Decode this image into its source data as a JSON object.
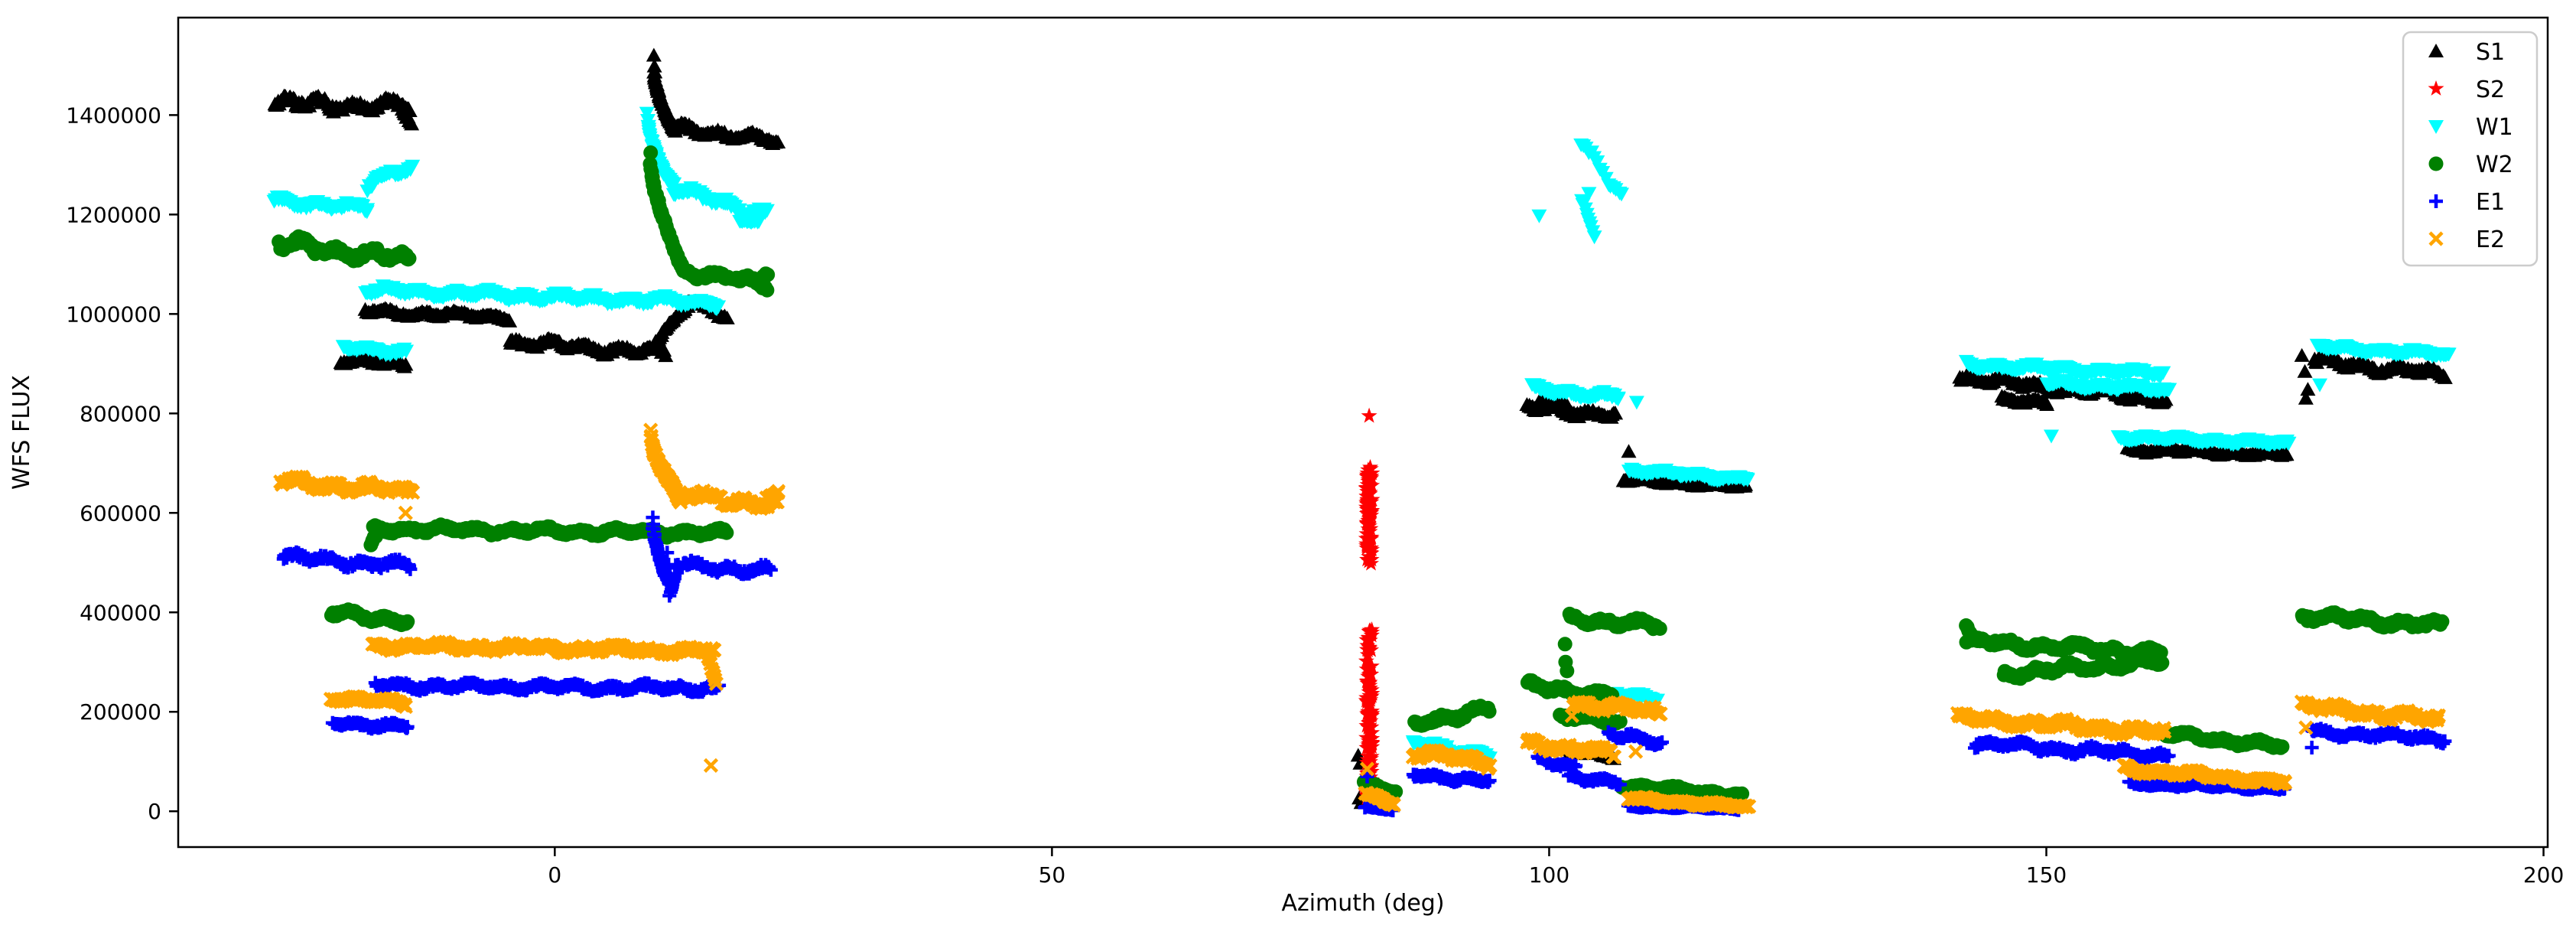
{
  "chart_data": {
    "type": "scatter",
    "title": "",
    "xlabel": "Azimuth (deg)",
    "ylabel": "WFS FLUX",
    "xlim": [
      -37.87,
      200.42
    ],
    "ylim": [
      -72000,
      1596000
    ],
    "xticks": [
      0,
      50,
      100,
      150,
      200
    ],
    "xtick_labels": [
      "0",
      "50",
      "100",
      "150",
      "200"
    ],
    "yticks": [
      0,
      200000,
      400000,
      600000,
      800000,
      1000000,
      1200000,
      1400000
    ],
    "ytick_labels": [
      "0",
      "200000",
      "400000",
      "600000",
      "800000",
      "1000000",
      "1200000",
      "1400000"
    ],
    "grid": false,
    "legend_position": "upper right",
    "background_color": "#ffffff",
    "axis_color": "#000000",
    "series": [
      {
        "name": "S1",
        "color": "#000000",
        "marker": "triangle_up",
        "segments": [
          {
            "a0": -28.2,
            "a1": -14.6,
            "f0": 1424000,
            "f1": 1416000,
            "amp": 13000
          },
          {
            "a0": -15.3,
            "a1": -14.4,
            "f0": 1408000,
            "f1": 1386000,
            "amp": 5000,
            "n": 10
          },
          {
            "a0": -21.5,
            "a1": -15.0,
            "f0": 906000,
            "f1": 898000,
            "amp": 6000
          },
          {
            "a0": -19.0,
            "a1": -4.5,
            "f0": 1006000,
            "f1": 993000,
            "amp": 6000
          },
          {
            "a0": -4.5,
            "a1": 11.1,
            "f0": 944000,
            "f1": 921000,
            "amp": 9000
          },
          {
            "a0": 9.95,
            "a1": 12.1,
            "f0": 1520000,
            "f1": 1372000,
            "amp": 7000,
            "curve": 0.45,
            "n": 80
          },
          {
            "a0": 12.1,
            "a1": 22.4,
            "f0": 1376000,
            "f1": 1347000,
            "amp": 9000
          },
          {
            "a0": 10.2,
            "a1": 13.4,
            "f0": 952000,
            "f1": 1020000,
            "amp": 8000,
            "curve": 1.3
          },
          {
            "a0": 13.4,
            "a1": 17.3,
            "f0": 1026000,
            "f1": 997000,
            "amp": 8000
          },
          {
            "a0": 97.8,
            "a1": 106.7,
            "f0": 812000,
            "f1": 797000,
            "amp": 9000
          },
          {
            "a0": 99.0,
            "a1": 101.8,
            "f0": 828000,
            "f1": 818000,
            "amp": 5000
          },
          {
            "a0": 107.5,
            "a1": 119.8,
            "f0": 667000,
            "f1": 652000,
            "amp": 4000
          },
          {
            "a0": 141.3,
            "a1": 162.0,
            "f0": 872000,
            "f1": 828000,
            "amp": 9000
          },
          {
            "a0": 145.5,
            "a1": 150.1,
            "f0": 830000,
            "f1": 818000,
            "amp": 6000
          },
          {
            "a0": 158.2,
            "a1": 174.2,
            "f0": 728000,
            "f1": 717000,
            "amp": 5000
          },
          {
            "a0": 177.0,
            "a1": 190.1,
            "f0": 906000,
            "f1": 878000,
            "amp": 9000
          },
          {
            "a0": 101.6,
            "a1": 106.5,
            "f0": 122000,
            "f1": 111000,
            "amp": 4000
          }
        ],
        "points": [
          [
            108.0,
            723000
          ],
          [
            175.7,
            916000
          ],
          [
            176.0,
            884000
          ],
          [
            176.3,
            848000
          ],
          [
            176.1,
            830000
          ],
          [
            80.8,
            112000
          ],
          [
            81.0,
            96000
          ],
          [
            80.9,
            26000
          ],
          [
            81.1,
            17000
          ]
        ]
      },
      {
        "name": "S2",
        "color": "#ff0000",
        "marker": "star",
        "segments": [
          {
            "a0": 81.6,
            "a1": 82.2,
            "f0": 497000,
            "f1": 692000,
            "vertical": true,
            "n": 80
          },
          {
            "a0": 81.6,
            "a1": 82.2,
            "f0": 18000,
            "f1": 369000,
            "vertical": true,
            "n": 130
          }
        ],
        "points": [
          [
            81.9,
            795000
          ]
        ]
      },
      {
        "name": "W1",
        "color": "#00ffff",
        "marker": "triangle_down",
        "segments": [
          {
            "a0": -28.2,
            "a1": -18.8,
            "f0": 1228000,
            "f1": 1212000,
            "amp": 8000
          },
          {
            "a0": -18.8,
            "a1": -14.3,
            "f0": 1252000,
            "f1": 1298000,
            "amp": 9000,
            "curve": 0.7
          },
          {
            "a0": -21.3,
            "a1": -15.0,
            "f0": 933000,
            "f1": 924000,
            "amp": 6000
          },
          {
            "a0": -19.0,
            "a1": 16.3,
            "f0": 1048000,
            "f1": 1022000,
            "amp": 8000
          },
          {
            "a0": 15.0,
            "a1": 16.4,
            "f0": 1030000,
            "f1": 1012000,
            "amp": 4000,
            "n": 12
          },
          {
            "a0": 9.3,
            "a1": 12.0,
            "f0": 1400000,
            "f1": 1262000,
            "amp": 7000,
            "curve": 0.5,
            "n": 70
          },
          {
            "a0": 12.0,
            "a1": 21.3,
            "f0": 1250000,
            "f1": 1200000,
            "amp": 11000
          },
          {
            "a0": 18.6,
            "a1": 20.6,
            "f0": 1184000,
            "f1": 1192000,
            "amp": 5000
          },
          {
            "a0": 103.2,
            "a1": 107.3,
            "f0": 1341000,
            "f1": 1238000,
            "amp": 10000,
            "n": 16
          },
          {
            "a0": 103.3,
            "a1": 104.5,
            "f0": 1228000,
            "f1": 1154000,
            "amp": 4000,
            "n": 9
          },
          {
            "a0": 98.3,
            "a1": 107.0,
            "f0": 850000,
            "f1": 833000,
            "amp": 7000
          },
          {
            "a0": 108.0,
            "a1": 120.0,
            "f0": 686000,
            "f1": 668000,
            "amp": 5000
          },
          {
            "a0": 106.5,
            "a1": 110.9,
            "f0": 240000,
            "f1": 226000,
            "amp": 6000
          },
          {
            "a0": 86.3,
            "a1": 94.0,
            "f0": 138000,
            "f1": 112000,
            "amp": 9000
          },
          {
            "a0": 142.0,
            "a1": 161.7,
            "f0": 898000,
            "f1": 880000,
            "amp": 7000
          },
          {
            "a0": 150.0,
            "a1": 162.4,
            "f0": 862000,
            "f1": 846000,
            "amp": 6000
          },
          {
            "a0": 157.3,
            "a1": 174.4,
            "f0": 753000,
            "f1": 740000,
            "amp": 5000
          },
          {
            "a0": 177.3,
            "a1": 190.5,
            "f0": 934000,
            "f1": 918000,
            "amp": 6000
          }
        ],
        "points": [
          [
            99.0,
            1198000
          ],
          [
            104.0,
            1243000
          ],
          [
            108.8,
            823000
          ],
          [
            150.5,
            755000
          ],
          [
            177.5,
            858000
          ]
        ]
      },
      {
        "name": "W2",
        "color": "#008000",
        "marker": "circle",
        "segments": [
          {
            "a0": -27.7,
            "a1": -14.6,
            "f0": 1142000,
            "f1": 1108000,
            "amp": 14000
          },
          {
            "a0": -22.5,
            "a1": -14.8,
            "f0": 398000,
            "f1": 383000,
            "amp": 8000
          },
          {
            "a0": -18.45,
            "a1": -17.9,
            "f0": 534000,
            "f1": 560000,
            "amp": 3000,
            "curve": 0.6,
            "n": 8
          },
          {
            "a0": -18.3,
            "a1": 17.3,
            "f0": 568000,
            "f1": 559000,
            "amp": 7000
          },
          {
            "a0": 9.6,
            "a1": 13.0,
            "f0": 1322000,
            "f1": 1092000,
            "amp": 8000,
            "curve": 0.55,
            "n": 85
          },
          {
            "a0": 13.0,
            "a1": 21.3,
            "f0": 1088000,
            "f1": 1058000,
            "amp": 9000
          },
          {
            "a0": 20.3,
            "a1": 21.4,
            "f0": 1062000,
            "f1": 1078000,
            "amp": 4000,
            "n": 10
          },
          {
            "a0": 86.5,
            "a1": 94.0,
            "f0": 178000,
            "f1": 205000,
            "amp": 10000
          },
          {
            "a0": 102.1,
            "a1": 111.1,
            "f0": 388000,
            "f1": 372000,
            "amp": 9000
          },
          {
            "a0": 97.8,
            "a1": 106.3,
            "f0": 252000,
            "f1": 232000,
            "amp": 9000
          },
          {
            "a0": 101.1,
            "a1": 107.1,
            "f0": 192000,
            "f1": 178000,
            "amp": 7000
          },
          {
            "a0": 107.3,
            "a1": 119.4,
            "f0": 52000,
            "f1": 33000,
            "amp": 5000
          },
          {
            "a0": 81.4,
            "a1": 84.5,
            "f0": 54000,
            "f1": 43000,
            "amp": 6000
          },
          {
            "a0": 141.9,
            "a1": 142.7,
            "f0": 372000,
            "f1": 346000,
            "amp": 3000,
            "n": 9
          },
          {
            "a0": 142.0,
            "a1": 161.5,
            "f0": 342000,
            "f1": 318000,
            "amp": 9000
          },
          {
            "a0": 145.7,
            "a1": 161.7,
            "f0": 276000,
            "f1": 302000,
            "amp": 9000
          },
          {
            "a0": 162.0,
            "a1": 173.7,
            "f0": 156000,
            "f1": 130000,
            "amp": 7000
          },
          {
            "a0": 175.7,
            "a1": 189.8,
            "f0": 394000,
            "f1": 372000,
            "amp": 10000
          }
        ],
        "points": [
          [
            101.6,
            336000
          ],
          [
            101.65,
            300000
          ],
          [
            101.8,
            282000
          ]
        ]
      },
      {
        "name": "E1",
        "color": "#0000ff",
        "marker": "plus",
        "segments": [
          {
            "a0": -27.3,
            "a1": -14.5,
            "f0": 512000,
            "f1": 492000,
            "amp": 9000
          },
          {
            "a0": -22.3,
            "a1": -14.8,
            "f0": 179000,
            "f1": 169000,
            "amp": 6000
          },
          {
            "a0": -18.0,
            "a1": 16.5,
            "f0": 253000,
            "f1": 247000,
            "amp": 7000
          },
          {
            "a0": 9.8,
            "a1": 11.8,
            "f0": 592000,
            "f1": 448000,
            "amp": 9000,
            "curve": 0.6,
            "n": 55
          },
          {
            "a0": 11.55,
            "a1": 12.1,
            "f0": 432000,
            "f1": 470000,
            "amp": 4000,
            "n": 8
          },
          {
            "a0": 12.1,
            "a1": 21.7,
            "f0": 494000,
            "f1": 484000,
            "amp": 9000
          },
          {
            "a0": 86.3,
            "a1": 94.0,
            "f0": 74000,
            "f1": 60000,
            "amp": 6000
          },
          {
            "a0": 98.8,
            "a1": 102.7,
            "f0": 104000,
            "f1": 90000,
            "amp": 6000
          },
          {
            "a0": 102.0,
            "a1": 107.1,
            "f0": 72000,
            "f1": 56000,
            "amp": 6000
          },
          {
            "a0": 106.0,
            "a1": 111.3,
            "f0": 154000,
            "f1": 138000,
            "amp": 7000
          },
          {
            "a0": 108.0,
            "a1": 119.0,
            "f0": 11000,
            "f1": 5000,
            "amp": 2500
          },
          {
            "a0": 81.5,
            "a1": 84.3,
            "f0": 9000,
            "f1": 4000,
            "amp": 2500
          },
          {
            "a0": 142.8,
            "a1": 162.3,
            "f0": 136000,
            "f1": 112000,
            "amp": 8000
          },
          {
            "a0": 158.3,
            "a1": 174.0,
            "f0": 56000,
            "f1": 46000,
            "amp": 4000
          },
          {
            "a0": 176.7,
            "a1": 190.1,
            "f0": 160000,
            "f1": 146000,
            "amp": 7000
          }
        ],
        "points": [
          [
            81.7,
            70000
          ],
          [
            176.7,
            128000
          ],
          [
            11.3,
            520000
          ],
          [
            11.45,
            496000
          ]
        ]
      },
      {
        "name": "E2",
        "color": "#ffa500",
        "marker": "x",
        "segments": [
          {
            "a0": -27.6,
            "a1": -14.3,
            "f0": 664000,
            "f1": 642000,
            "amp": 10000
          },
          {
            "a0": -22.5,
            "a1": -15.0,
            "f0": 229000,
            "f1": 217000,
            "amp": 6000
          },
          {
            "a0": -18.3,
            "a1": 16.0,
            "f0": 334000,
            "f1": 322000,
            "amp": 7000
          },
          {
            "a0": 15.2,
            "a1": 16.3,
            "f0": 330000,
            "f1": 255000,
            "amp": 4000,
            "n": 10
          },
          {
            "a0": 9.6,
            "a1": 12.6,
            "f0": 772000,
            "f1": 628000,
            "amp": 9000,
            "curve": 0.55,
            "n": 70
          },
          {
            "a0": 12.6,
            "a1": 22.4,
            "f0": 636000,
            "f1": 618000,
            "amp": 11000
          },
          {
            "a0": 21.3,
            "a1": 22.5,
            "f0": 630000,
            "f1": 648000,
            "amp": 4000,
            "n": 10
          },
          {
            "a0": 86.3,
            "a1": 94.0,
            "f0": 118000,
            "f1": 98000,
            "amp": 9000
          },
          {
            "a0": 97.8,
            "a1": 106.5,
            "f0": 138000,
            "f1": 115000,
            "amp": 9000
          },
          {
            "a0": 102.4,
            "a1": 111.1,
            "f0": 218000,
            "f1": 198000,
            "amp": 9000
          },
          {
            "a0": 108.0,
            "a1": 120.1,
            "f0": 26000,
            "f1": 8000,
            "amp": 4000
          },
          {
            "a0": 81.5,
            "a1": 84.4,
            "f0": 32000,
            "f1": 16000,
            "amp": 6000
          },
          {
            "a0": 141.1,
            "a1": 161.9,
            "f0": 188000,
            "f1": 158000,
            "amp": 9000
          },
          {
            "a0": 157.8,
            "a1": 174.0,
            "f0": 86000,
            "f1": 58000,
            "amp": 6000
          },
          {
            "a0": 175.7,
            "a1": 189.5,
            "f0": 212000,
            "f1": 184000,
            "amp": 9000
          }
        ],
        "points": [
          [
            -15.0,
            600000
          ],
          [
            15.7,
            92000
          ],
          [
            81.7,
            85000
          ],
          [
            108.7,
            120000
          ],
          [
            102.3,
            192000
          ],
          [
            111.2,
            196000
          ],
          [
            176.1,
            168000
          ],
          [
            189.3,
            183000
          ]
        ]
      }
    ]
  }
}
